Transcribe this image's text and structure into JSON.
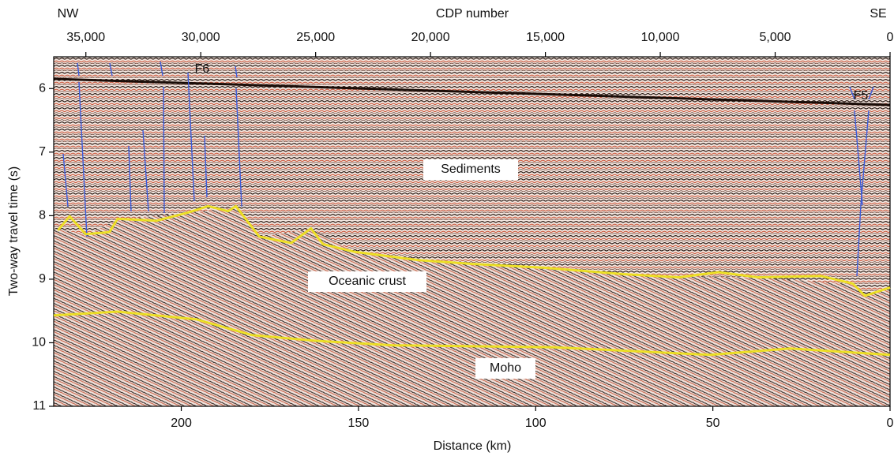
{
  "chart_data": {
    "type": "line",
    "top_axis_label": "CDP number",
    "xlabel": "Distance (km)",
    "ylabel": "Two-way travel time (s)",
    "xlim": [
      236,
      0
    ],
    "xticks": [
      200,
      150,
      100,
      50,
      0
    ],
    "x2lim": [
      36400,
      0
    ],
    "x2ticks": [
      {
        "value": 35000,
        "label": "35,000"
      },
      {
        "value": 30000,
        "label": "30,000"
      },
      {
        "value": 25000,
        "label": "25,000"
      },
      {
        "value": 20000,
        "label": "20,000"
      },
      {
        "value": 15000,
        "label": "15,000"
      },
      {
        "value": 10000,
        "label": "10,000"
      },
      {
        "value": 5000,
        "label": "5,000"
      },
      0
    ],
    "ylim": [
      5.5,
      11
    ],
    "yticks": [
      6,
      7,
      8,
      9,
      10,
      11
    ],
    "series": [
      {
        "color": "#f0e418",
        "x": [
          234.8,
          231.5,
          227,
          220.3,
          218,
          207,
          198,
          192.4,
          186.8,
          184.6,
          178,
          169,
          163.4,
          160,
          151,
          133,
          117.6,
          97.5,
          75.2,
          59.6,
          48.4,
          37.3,
          19.4,
          10.5,
          7.1,
          0
        ],
        "values": [
          8.23,
          8.01,
          8.29,
          8.26,
          8.05,
          8.08,
          7.95,
          7.85,
          7.93,
          7.85,
          8.33,
          8.43,
          8.2,
          8.45,
          8.57,
          8.7,
          8.76,
          8.82,
          8.92,
          8.97,
          8.89,
          8.97,
          8.95,
          9.07,
          9.26,
          9.13
        ]
      },
      {
        "color": "#f0e418",
        "x": [
          236,
          218,
          195.8,
          180,
          162,
          140,
          95.3,
          50.7,
          28.3,
          0
        ],
        "values": [
          9.57,
          9.51,
          9.63,
          9.88,
          9.97,
          10.04,
          10.07,
          10.19,
          10.09,
          10.19
        ]
      }
    ],
    "annotations": [
      "NW",
      "SE",
      "F6",
      "F5",
      "Sediments",
      "Oceanic crust",
      "Moho"
    ]
  }
}
